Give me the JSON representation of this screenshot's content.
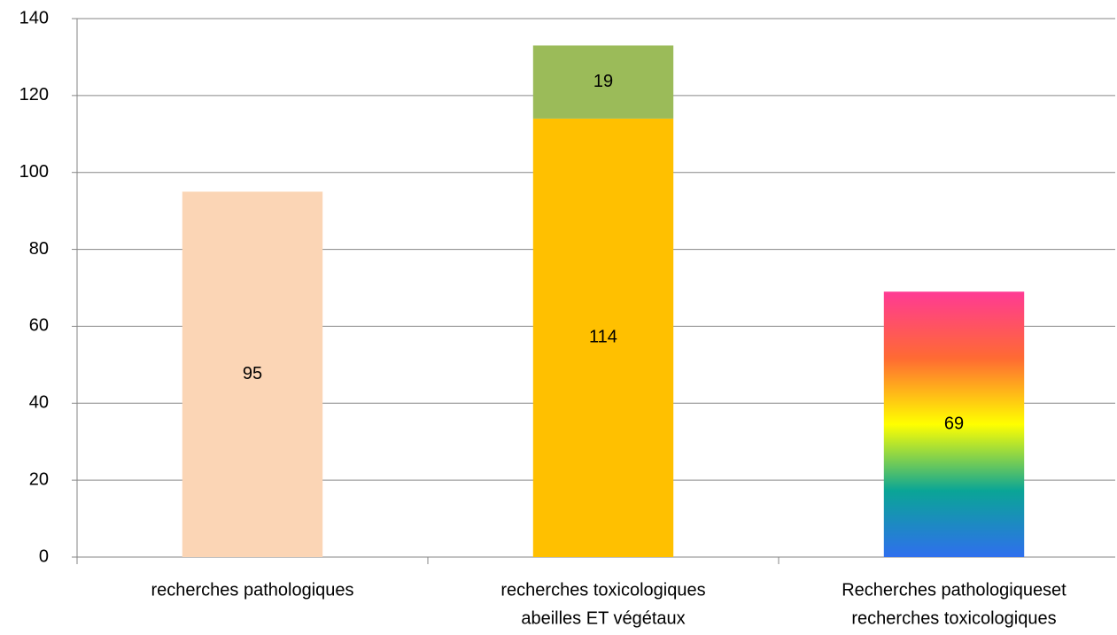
{
  "chart_data": {
    "type": "stacked-bar",
    "categories": [
      [
        "recherches pathologiques"
      ],
      [
        "recherches toxicologiques",
        "abeilles ET végétaux"
      ],
      [
        "Recherches pathologiqueset",
        "recherches toxicologiques"
      ]
    ],
    "series": [
      {
        "values": [
          95,
          114,
          69
        ],
        "colors": [
          "#fbd5b5",
          "#ffc000",
          null
        ],
        "gradient": [
          null,
          null,
          [
            "#2f6fee",
            "#0aa596",
            "#ffff00",
            "#ff6a33",
            "#ff3a94"
          ]
        ]
      },
      {
        "values": [
          null,
          19,
          null
        ],
        "color": "#9bbb59"
      }
    ],
    "ylim": [
      0,
      140
    ],
    "yticks": [
      0,
      20,
      40,
      60,
      80,
      100,
      120,
      140
    ],
    "grid": true
  }
}
